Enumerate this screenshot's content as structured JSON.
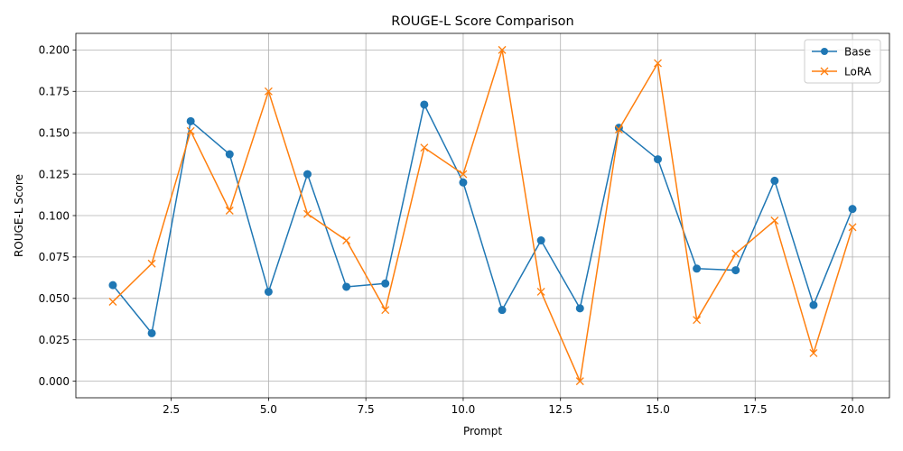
{
  "chart_data": {
    "type": "line",
    "title": "ROUGE-L Score Comparison",
    "xlabel": "Prompt",
    "ylabel": "ROUGE-L Score",
    "xlim": [
      0.05,
      20.95
    ],
    "ylim": [
      -0.01,
      0.21
    ],
    "xticks": [
      2.5,
      5.0,
      7.5,
      10.0,
      12.5,
      15.0,
      17.5,
      20.0
    ],
    "xtick_labels": [
      "2.5",
      "5.0",
      "7.5",
      "10.0",
      "12.5",
      "15.0",
      "17.5",
      "20.0"
    ],
    "yticks": [
      0.0,
      0.025,
      0.05,
      0.075,
      0.1,
      0.125,
      0.15,
      0.175,
      0.2
    ],
    "ytick_labels": [
      "0.000",
      "0.025",
      "0.050",
      "0.075",
      "0.100",
      "0.125",
      "0.150",
      "0.175",
      "0.200"
    ],
    "grid": true,
    "legend_position": "top-right",
    "x": [
      1,
      2,
      3,
      4,
      5,
      6,
      7,
      8,
      9,
      10,
      11,
      12,
      13,
      14,
      15,
      16,
      17,
      18,
      19,
      20
    ],
    "series": [
      {
        "name": "Base",
        "color": "#1f77b4",
        "marker": "circle",
        "values": [
          0.058,
          0.029,
          0.157,
          0.137,
          0.054,
          0.125,
          0.057,
          0.059,
          0.167,
          0.12,
          0.043,
          0.085,
          0.044,
          0.153,
          0.134,
          0.068,
          0.067,
          0.121,
          0.046,
          0.104
        ]
      },
      {
        "name": "LoRA",
        "color": "#ff7f0e",
        "marker": "x",
        "values": [
          0.048,
          0.071,
          0.151,
          0.103,
          0.175,
          0.101,
          0.085,
          0.043,
          0.141,
          0.125,
          0.2,
          0.054,
          0.0,
          0.152,
          0.192,
          0.037,
          0.077,
          0.097,
          0.017,
          0.093
        ]
      }
    ]
  }
}
